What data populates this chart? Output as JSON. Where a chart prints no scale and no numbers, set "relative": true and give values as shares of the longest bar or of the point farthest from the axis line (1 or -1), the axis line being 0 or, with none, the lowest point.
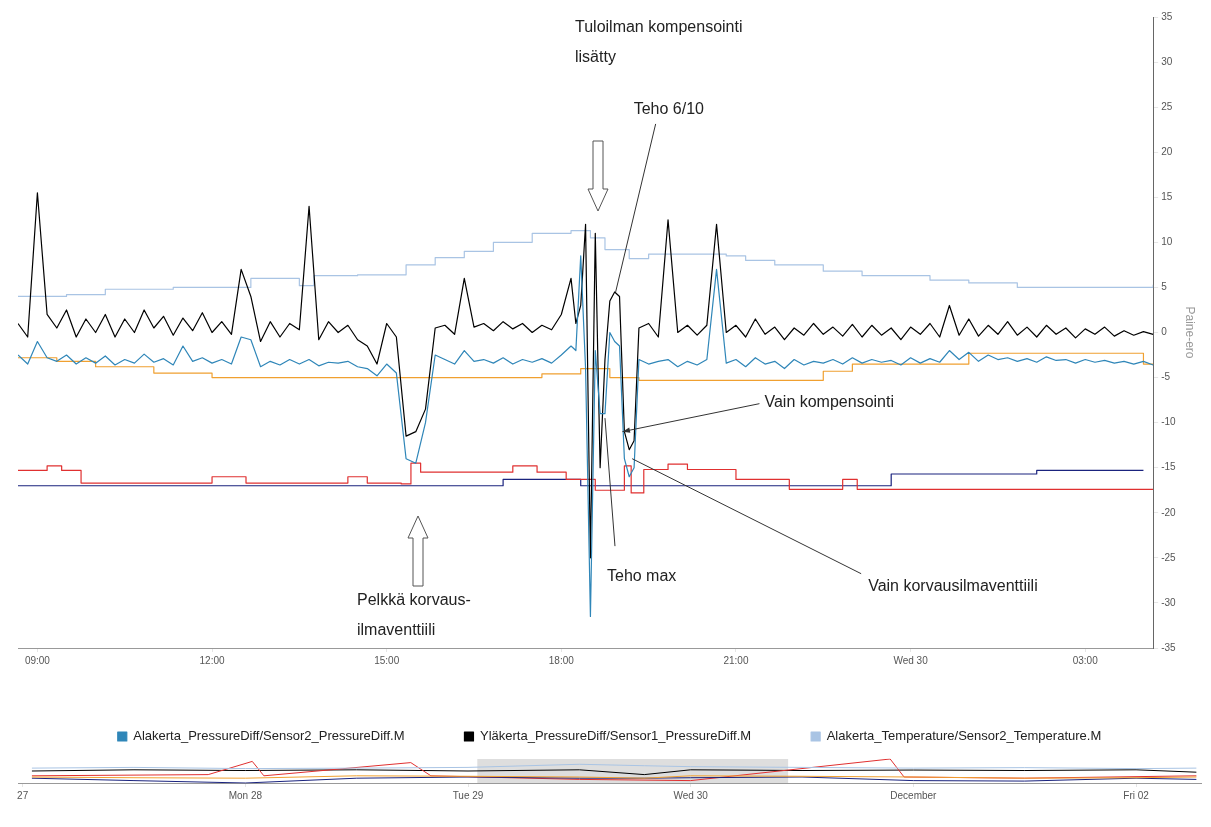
{
  "chart_data": [
    {
      "type": "line",
      "ylabel": "Paine-ero",
      "legend": "bottom",
      "grid": false,
      "xlim": [
        "--11-29T08:40",
        "--11-30T04:10"
      ],
      "xticks": [
        {
          "value": "--11-29T09:00",
          "label": "09:00"
        },
        {
          "value": "--11-29T12:00",
          "label": "12:00"
        },
        {
          "value": "--11-29T15:00",
          "label": "15:00"
        },
        {
          "value": "--11-29T18:00",
          "label": "18:00"
        },
        {
          "value": "--11-29T21:00",
          "label": "21:00"
        },
        {
          "value": "--11-30T00:00",
          "label": "Wed 30"
        },
        {
          "value": "--11-30T03:00",
          "label": "03:00"
        }
      ],
      "ylim": [
        -35,
        35
      ],
      "yticks": [
        -35,
        -30,
        -25,
        -20,
        -15,
        -10,
        -5,
        0,
        5,
        10,
        15,
        20,
        25,
        30,
        35
      ],
      "x": [
        "--11-29T08:40",
        "--11-29T08:50",
        "--11-29T09:00",
        "--11-29T09:10",
        "--11-29T09:20",
        "--11-29T09:30",
        "--11-29T09:40",
        "--11-29T09:50",
        "--11-29T10:00",
        "--11-29T10:10",
        "--11-29T10:20",
        "--11-29T10:30",
        "--11-29T10:40",
        "--11-29T10:50",
        "--11-29T11:00",
        "--11-29T11:10",
        "--11-29T11:20",
        "--11-29T11:30",
        "--11-29T11:40",
        "--11-29T11:50",
        "--11-29T12:00",
        "--11-29T12:10",
        "--11-29T12:20",
        "--11-29T12:30",
        "--11-29T12:40",
        "--11-29T12:50",
        "--11-29T13:00",
        "--11-29T13:10",
        "--11-29T13:20",
        "--11-29T13:30",
        "--11-29T13:40",
        "--11-29T13:50",
        "--11-29T14:00",
        "--11-29T14:10",
        "--11-29T14:20",
        "--11-29T14:30",
        "--11-29T14:40",
        "--11-29T14:50",
        "--11-29T15:00",
        "--11-29T15:10",
        "--11-29T15:20",
        "--11-29T15:30",
        "--11-29T15:40",
        "--11-29T15:50",
        "--11-29T16:00",
        "--11-29T16:10",
        "--11-29T16:20",
        "--11-29T16:30",
        "--11-29T16:40",
        "--11-29T16:50",
        "--11-29T17:00",
        "--11-29T17:10",
        "--11-29T17:20",
        "--11-29T17:30",
        "--11-29T17:40",
        "--11-29T17:50",
        "--11-29T18:00",
        "--11-29T18:10",
        "--11-29T18:15",
        "--11-29T18:20",
        "--11-29T18:25",
        "--11-29T18:30",
        "--11-29T18:35",
        "--11-29T18:40",
        "--11-29T18:45",
        "--11-29T18:50",
        "--11-29T18:55",
        "--11-29T19:00",
        "--11-29T19:05",
        "--11-29T19:10",
        "--11-29T19:15",
        "--11-29T19:20",
        "--11-29T19:30",
        "--11-29T19:40",
        "--11-29T19:50",
        "--11-29T20:00",
        "--11-29T20:10",
        "--11-29T20:20",
        "--11-29T20:30",
        "--11-29T20:40",
        "--11-29T20:50",
        "--11-29T21:00",
        "--11-29T21:10",
        "--11-29T21:20",
        "--11-29T21:30",
        "--11-29T21:40",
        "--11-29T21:50",
        "--11-29T22:00",
        "--11-29T22:10",
        "--11-29T22:20",
        "--11-29T22:30",
        "--11-29T22:40",
        "--11-29T22:50",
        "--11-29T23:00",
        "--11-29T23:10",
        "--11-29T23:20",
        "--11-29T23:30",
        "--11-29T23:40",
        "--11-29T23:50",
        "--11-30T00:00",
        "--11-30T00:10",
        "--11-30T00:20",
        "--11-30T00:30",
        "--11-30T00:40",
        "--11-30T00:50",
        "--11-30T01:00",
        "--11-30T01:10",
        "--11-30T01:20",
        "--11-30T01:30",
        "--11-30T01:40",
        "--11-30T01:50",
        "--11-30T02:00",
        "--11-30T02:10",
        "--11-30T02:20",
        "--11-30T02:30",
        "--11-30T02:40",
        "--11-30T02:50",
        "--11-30T03:00",
        "--11-30T03:10",
        "--11-30T03:20",
        "--11-30T03:30",
        "--11-30T03:40",
        "--11-30T03:50",
        "--11-30T04:00",
        "--11-30T04:10"
      ],
      "series": [
        {
          "name": "Alakerta_PressureDiff/Sensor2_PressureDiff.M",
          "color": "#2f86b8",
          "values": [
            -2.5,
            -3.5,
            -1.0,
            -2.8,
            -3.2,
            -2.5,
            -3.5,
            -2.8,
            -3.4,
            -2.6,
            -3.6,
            -3.0,
            -3.4,
            -2.4,
            -3.3,
            -2.9,
            -3.6,
            -1.5,
            -3.2,
            -2.8,
            -3.4,
            -3.0,
            -3.5,
            -0.5,
            -0.8,
            -3.8,
            -3.2,
            -3.6,
            -3.0,
            -3.5,
            -3.0,
            -3.7,
            -3.3,
            -3.4,
            -3.2,
            -3.8,
            -4.0,
            -4.8,
            -3.5,
            -4.5,
            -14.0,
            -14.5,
            -10.0,
            -2.5,
            -3.0,
            -3.5,
            -2.0,
            -3.2,
            -3.0,
            -3.4,
            -2.8,
            -3.5,
            -3.0,
            -3.3,
            -2.9,
            -3.4,
            -2.5,
            -1.5,
            -2.0,
            8.5,
            -4.0,
            -31.5,
            -2.0,
            -9.0,
            -9.0,
            0.0,
            -1.0,
            -1.5,
            -14.0,
            -16.0,
            -15.0,
            -3.0,
            -3.5,
            -3.2,
            -3.0,
            -3.8,
            -3.2,
            -3.6,
            -3.0,
            7.0,
            -3.4,
            -3.0,
            -3.8,
            -2.8,
            -3.5,
            -3.2,
            -4.0,
            -3.0,
            -3.6,
            -3.2,
            -3.4,
            -3.0,
            -3.5,
            -2.8,
            -3.4,
            -3.0,
            -3.3,
            -3.1,
            -3.6,
            -2.8,
            -3.4,
            -2.9,
            -3.3,
            -2.0,
            -3.0,
            -2.2,
            -3.2,
            -2.5,
            -3.0,
            -2.8,
            -3.2,
            -2.9,
            -3.3,
            -2.7,
            -3.1,
            -3.0,
            -3.4,
            -3.0,
            -3.3,
            -3.1,
            -3.4,
            -3.2,
            -3.5,
            -3.2,
            -3.6
          ]
        },
        {
          "name": "Yläkerta_PressureDiff/Sensor1_PressureDiff.M",
          "color": "#000000",
          "values": [
            1.0,
            -0.5,
            15.5,
            2.0,
            0.5,
            2.5,
            -0.5,
            1.5,
            0.0,
            2.0,
            -0.5,
            1.5,
            0.0,
            2.5,
            0.5,
            1.8,
            -0.3,
            1.6,
            0.2,
            2.2,
            0.0,
            1.2,
            -0.2,
            7.0,
            4.0,
            -1.0,
            1.2,
            -0.5,
            1.0,
            0.3,
            14.0,
            -0.8,
            1.2,
            0.0,
            0.8,
            -0.8,
            -1.5,
            -3.5,
            1.0,
            -0.5,
            -11.5,
            -11.0,
            -8.5,
            0.5,
            0.8,
            -0.2,
            6.0,
            0.6,
            1.0,
            0.2,
            1.2,
            0.4,
            1.0,
            0.0,
            0.8,
            0.3,
            2.0,
            6.0,
            1.0,
            3.0,
            12.0,
            -25.0,
            11.0,
            -15.0,
            -3.0,
            3.5,
            4.5,
            4.0,
            -11.0,
            -13.0,
            -12.0,
            0.5,
            1.0,
            -0.5,
            12.5,
            0.0,
            0.8,
            -0.3,
            0.8,
            12.0,
            0.0,
            0.8,
            -0.5,
            1.5,
            -0.2,
            0.6,
            -0.8,
            0.5,
            -0.3,
            1.0,
            -0.2,
            0.6,
            -0.4,
            0.9,
            -0.5,
            0.8,
            -0.3,
            0.5,
            -0.8,
            0.6,
            -0.2,
            1.0,
            -0.5,
            3.0,
            -0.3,
            1.5,
            -0.4,
            0.8,
            -0.2,
            1.2,
            -0.3,
            0.6,
            -0.5,
            0.8,
            -0.2,
            0.5,
            -0.6,
            0.4,
            -0.2,
            0.6,
            -0.4,
            0.2,
            -0.3,
            0.1,
            -0.2
          ]
        },
        {
          "name": "Alakerta_Temperature/Sensor2_Temperature.M",
          "type": "step",
          "color": "#a9c4e4",
          "x": [
            "--11-29T08:40",
            "--11-29T09:30",
            "--11-29T10:10",
            "--11-29T11:20",
            "--11-29T12:40",
            "--11-29T13:30",
            "--11-29T13:45",
            "--11-29T14:30",
            "--11-29T15:20",
            "--11-29T15:50",
            "--11-29T16:20",
            "--11-29T16:50",
            "--11-29T17:30",
            "--11-29T18:10",
            "--11-29T18:30",
            "--11-29T18:45",
            "--11-29T19:10",
            "--11-29T19:30",
            "--11-29T20:50",
            "--11-29T21:10",
            "--11-29T21:40",
            "--11-29T22:30",
            "--11-29T23:10",
            "--11-30T00:20",
            "--11-30T01:00",
            "--11-30T01:50",
            "--11-30T03:00",
            "--11-30T04:10"
          ],
          "values": [
            4.0,
            4.2,
            4.8,
            5.0,
            6.0,
            5.2,
            6.3,
            6.4,
            7.5,
            8.3,
            9.0,
            10.0,
            11.0,
            11.3,
            10.5,
            9.2,
            8.2,
            8.7,
            8.5,
            8.0,
            7.5,
            6.8,
            6.3,
            5.8,
            5.5,
            5.0,
            5.0,
            5.3
          ]
        },
        {
          "type": "step",
          "color": "#f0a030",
          "x": [
            "--11-29T08:40",
            "--11-29T09:20",
            "--11-29T10:00",
            "--11-29T11:00",
            "--11-29T12:00",
            "--11-29T17:40",
            "--11-29T18:20",
            "--11-29T18:50",
            "--11-29T19:20",
            "--11-29T22:30",
            "--11-29T23:00",
            "--11-30T01:00",
            "--11-30T04:00",
            "--11-30T04:10"
          ],
          "values": [
            -2.8,
            -3.2,
            -3.8,
            -4.5,
            -5.0,
            -4.6,
            -4.0,
            -5.0,
            -5.3,
            -4.3,
            -3.5,
            -2.3,
            -3.5,
            -3.6
          ]
        },
        {
          "type": "step",
          "color": "#e03030",
          "x": [
            "--11-29T08:40",
            "--11-29T09:10",
            "--11-29T09:25",
            "--11-29T09:45",
            "--11-29T12:00",
            "--11-29T12:35",
            "--11-29T14:20",
            "--11-29T14:40",
            "--11-29T15:15",
            "--11-29T15:25",
            "--11-29T15:35",
            "--11-29T17:10",
            "--11-29T17:35",
            "--11-29T18:05",
            "--11-29T18:35",
            "--11-29T19:05",
            "--11-29T19:12",
            "--11-29T19:25",
            "--11-29T19:50",
            "--11-29T20:10",
            "--11-29T21:00",
            "--11-29T21:55",
            "--11-29T22:50",
            "--11-29T23:05",
            "--11-30T04:10"
          ],
          "values": [
            -15.3,
            -14.8,
            -15.3,
            -16.7,
            -16.0,
            -16.7,
            -16.0,
            -16.7,
            -16.8,
            -14.5,
            -15.5,
            -14.8,
            -15.5,
            -16.3,
            -17.5,
            -14.8,
            -17.8,
            -15.2,
            -14.6,
            -15.2,
            -16.3,
            -17.4,
            -16.3,
            -17.4,
            -17.4
          ]
        },
        {
          "type": "step",
          "color": "#1a237e",
          "x": [
            "--11-29T08:40",
            "--11-29T17:00",
            "--11-29T18:20",
            "--11-29T23:40",
            "--11-30T02:10",
            "--11-30T04:00"
          ],
          "values": [
            -17.0,
            -16.3,
            -17.0,
            -15.7,
            -15.3,
            -15.3
          ]
        }
      ],
      "annotations": [
        "Tuloilman kompensointi lisätty",
        {
          "text": "Teho 6/10",
          "x": "--11-29T18:56",
          "y": 4.5
        },
        {
          "text": "Vain kompensointi",
          "x": "--11-29T19:03",
          "y": -11
        },
        {
          "text": "Teho max",
          "x": "--11-29T18:45",
          "y": -9.5
        },
        {
          "text": "Vain korvausilmaventtiili",
          "x": "--11-29T19:13",
          "y": -14
        },
        "Pelkkä korvaus-ilmaventtiili"
      ]
    },
    {
      "type": "line",
      "relative": true,
      "grid": false,
      "xlim": [
        "--11-26T23:30",
        "--12-02T07:00"
      ],
      "xticks": [
        {
          "value": "--11-27",
          "label": "27"
        },
        {
          "value": "--11-28",
          "label": "Mon 28"
        },
        {
          "value": "--11-29",
          "label": "Tue 29"
        },
        {
          "value": "--11-30",
          "label": "Wed 30"
        },
        {
          "value": "--12-01",
          "label": "December"
        },
        {
          "value": "--12-02",
          "label": "Fri 02"
        }
      ],
      "bands": [
        {
          "axis": "x",
          "from": "--11-29T01:00",
          "to": "--11-30T10:30",
          "color": "#c8c8c8"
        }
      ],
      "x": [
        "--11-27T01:00",
        "--11-27T12:00",
        "--11-28T00:00",
        "--11-28T12:00",
        "--11-29T00:00",
        "--11-29T12:00",
        "--11-29T19:00",
        "--11-30T00:00",
        "--11-30T12:00",
        "--12-01T00:00",
        "--12-01T12:00",
        "--12-02T00:00",
        "--12-02T06:30"
      ],
      "series": [
        {
          "color": "#a9c4e4",
          "values": [
            0.62,
            0.65,
            0.6,
            0.62,
            0.65,
            0.78,
            0.72,
            0.68,
            0.65,
            0.62,
            0.64,
            0.6,
            0.62
          ]
        },
        {
          "color": "#f0a030",
          "values": [
            0.25,
            0.22,
            0.2,
            0.3,
            0.28,
            0.25,
            0.2,
            0.3,
            0.28,
            0.25,
            0.2,
            0.22,
            0.25
          ]
        },
        {
          "color": "#1a237e",
          "values": [
            0.2,
            0.1,
            0,
            0.2,
            0.25,
            0.2,
            0.2,
            0.22,
            0.25,
            0.1,
            0.08,
            0.2,
            0.15
          ]
        },
        {
          "color": "#e03030",
          "x": [
            "--11-27T01:00",
            "--11-27T20:00",
            "--11-28T00:45",
            "--11-28T02:00",
            "--11-28T17:50",
            "--11-28T20:00",
            "--11-29T12:00",
            "--11-30T00:00",
            "--11-30T21:30",
            "--11-30T23:00",
            "--12-01T12:00",
            "--12-02T06:30"
          ],
          "values": [
            0.3,
            0.35,
            0.9,
            0.3,
            0.85,
            0.3,
            0.15,
            0.1,
            1,
            0.25,
            0.2,
            0.3
          ]
        },
        {
          "color": "#000000",
          "values": [
            0.5,
            0.55,
            0.52,
            0.55,
            0.5,
            0.55,
            0.35,
            0.55,
            0.52,
            0.54,
            0.52,
            0.55,
            0.45
          ]
        }
      ]
    }
  ]
}
